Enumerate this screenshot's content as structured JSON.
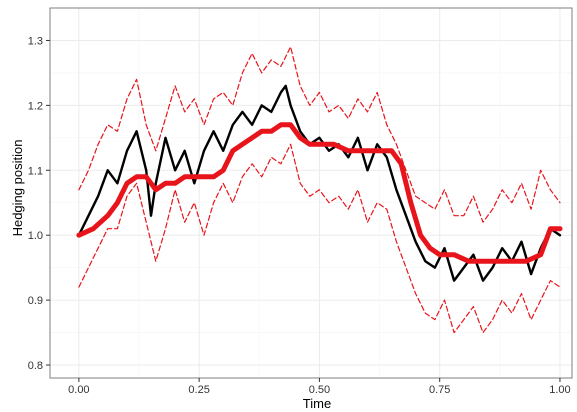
{
  "chart_data": {
    "type": "line",
    "title": "",
    "xlabel": "Time",
    "ylabel": "Hedging position",
    "xlim": [
      -0.06,
      1.025
    ],
    "ylim": [
      0.78,
      1.35
    ],
    "xticks": [
      0.0,
      0.25,
      0.5,
      0.75,
      1.0
    ],
    "xtick_labels": [
      "0.00",
      "0.25",
      "0.50",
      "0.75",
      "1.00"
    ],
    "yticks": [
      0.8,
      0.9,
      1.0,
      1.1,
      1.2,
      1.3
    ],
    "ytick_labels": [
      "0.8",
      "0.9",
      "1.0",
      "1.1",
      "1.2",
      "1.3"
    ],
    "grid": true,
    "legend": "none",
    "colors": {
      "band": "#e8141b",
      "path": "#000000",
      "hedge": "#e8141b",
      "grid": "#ebebeb",
      "panel_border": "#7f7f7f"
    },
    "series": [
      {
        "style": "solid-black",
        "x": [
          0.0,
          0.02,
          0.04,
          0.06,
          0.08,
          0.1,
          0.12,
          0.14,
          0.15,
          0.16,
          0.18,
          0.2,
          0.22,
          0.24,
          0.26,
          0.28,
          0.3,
          0.32,
          0.34,
          0.36,
          0.38,
          0.4,
          0.42,
          0.43,
          0.44,
          0.46,
          0.48,
          0.5,
          0.52,
          0.54,
          0.56,
          0.58,
          0.6,
          0.62,
          0.64,
          0.66,
          0.68,
          0.7,
          0.72,
          0.74,
          0.76,
          0.78,
          0.8,
          0.82,
          0.84,
          0.86,
          0.88,
          0.9,
          0.92,
          0.94,
          0.96,
          0.98,
          1.0
        ],
        "y": [
          1.0,
          1.03,
          1.06,
          1.1,
          1.08,
          1.13,
          1.16,
          1.1,
          1.03,
          1.08,
          1.15,
          1.1,
          1.13,
          1.08,
          1.13,
          1.16,
          1.13,
          1.17,
          1.19,
          1.17,
          1.2,
          1.19,
          1.22,
          1.23,
          1.2,
          1.16,
          1.14,
          1.15,
          1.13,
          1.14,
          1.12,
          1.15,
          1.1,
          1.14,
          1.12,
          1.07,
          1.03,
          0.99,
          0.96,
          0.95,
          0.98,
          0.93,
          0.95,
          0.97,
          0.93,
          0.95,
          0.98,
          0.96,
          0.99,
          0.94,
          0.98,
          1.01,
          1.0
        ]
      },
      {
        "style": "thick-red",
        "x": [
          0.0,
          0.03,
          0.06,
          0.08,
          0.1,
          0.12,
          0.14,
          0.16,
          0.18,
          0.2,
          0.22,
          0.24,
          0.26,
          0.28,
          0.3,
          0.32,
          0.34,
          0.36,
          0.38,
          0.4,
          0.42,
          0.44,
          0.46,
          0.48,
          0.5,
          0.53,
          0.56,
          0.59,
          0.62,
          0.65,
          0.67,
          0.69,
          0.71,
          0.73,
          0.75,
          0.78,
          0.81,
          0.84,
          0.87,
          0.9,
          0.93,
          0.96,
          0.98,
          1.0
        ],
        "y": [
          1.0,
          1.01,
          1.03,
          1.05,
          1.08,
          1.09,
          1.09,
          1.07,
          1.08,
          1.08,
          1.09,
          1.09,
          1.09,
          1.09,
          1.1,
          1.13,
          1.14,
          1.15,
          1.16,
          1.16,
          1.17,
          1.17,
          1.15,
          1.14,
          1.14,
          1.14,
          1.13,
          1.13,
          1.13,
          1.13,
          1.11,
          1.05,
          1.0,
          0.98,
          0.97,
          0.97,
          0.96,
          0.96,
          0.96,
          0.96,
          0.96,
          0.97,
          1.01,
          1.01
        ]
      },
      {
        "style": "dashed-red-upper",
        "x": [
          0.0,
          0.02,
          0.04,
          0.06,
          0.08,
          0.1,
          0.12,
          0.14,
          0.16,
          0.18,
          0.2,
          0.22,
          0.24,
          0.26,
          0.28,
          0.3,
          0.32,
          0.34,
          0.36,
          0.38,
          0.4,
          0.42,
          0.44,
          0.46,
          0.48,
          0.5,
          0.52,
          0.54,
          0.56,
          0.58,
          0.6,
          0.62,
          0.64,
          0.66,
          0.68,
          0.7,
          0.72,
          0.74,
          0.76,
          0.78,
          0.8,
          0.82,
          0.84,
          0.86,
          0.88,
          0.9,
          0.92,
          0.94,
          0.96,
          0.98,
          1.0
        ],
        "y": [
          1.07,
          1.1,
          1.14,
          1.17,
          1.16,
          1.21,
          1.24,
          1.17,
          1.13,
          1.18,
          1.23,
          1.19,
          1.21,
          1.17,
          1.21,
          1.22,
          1.2,
          1.25,
          1.28,
          1.25,
          1.27,
          1.26,
          1.29,
          1.23,
          1.2,
          1.22,
          1.19,
          1.2,
          1.18,
          1.21,
          1.19,
          1.22,
          1.17,
          1.14,
          1.1,
          1.06,
          1.05,
          1.04,
          1.07,
          1.03,
          1.03,
          1.06,
          1.02,
          1.04,
          1.07,
          1.05,
          1.08,
          1.04,
          1.1,
          1.07,
          1.05
        ]
      },
      {
        "style": "dashed-red-lower",
        "x": [
          0.0,
          0.02,
          0.04,
          0.06,
          0.08,
          0.1,
          0.12,
          0.14,
          0.16,
          0.18,
          0.2,
          0.22,
          0.24,
          0.26,
          0.28,
          0.3,
          0.32,
          0.34,
          0.36,
          0.38,
          0.4,
          0.42,
          0.44,
          0.46,
          0.48,
          0.5,
          0.52,
          0.54,
          0.56,
          0.58,
          0.6,
          0.62,
          0.64,
          0.66,
          0.68,
          0.7,
          0.72,
          0.74,
          0.76,
          0.78,
          0.8,
          0.82,
          0.84,
          0.86,
          0.88,
          0.9,
          0.92,
          0.94,
          0.96,
          0.98,
          1.0
        ],
        "y": [
          0.92,
          0.95,
          0.98,
          1.01,
          1.01,
          1.06,
          1.08,
          1.02,
          0.96,
          1.01,
          1.07,
          1.02,
          1.05,
          1.0,
          1.05,
          1.08,
          1.05,
          1.09,
          1.11,
          1.09,
          1.12,
          1.11,
          1.14,
          1.08,
          1.06,
          1.07,
          1.05,
          1.06,
          1.04,
          1.07,
          1.02,
          1.05,
          1.04,
          0.99,
          0.95,
          0.91,
          0.88,
          0.87,
          0.9,
          0.85,
          0.87,
          0.89,
          0.85,
          0.87,
          0.9,
          0.88,
          0.91,
          0.87,
          0.9,
          0.93,
          0.92
        ]
      }
    ]
  }
}
